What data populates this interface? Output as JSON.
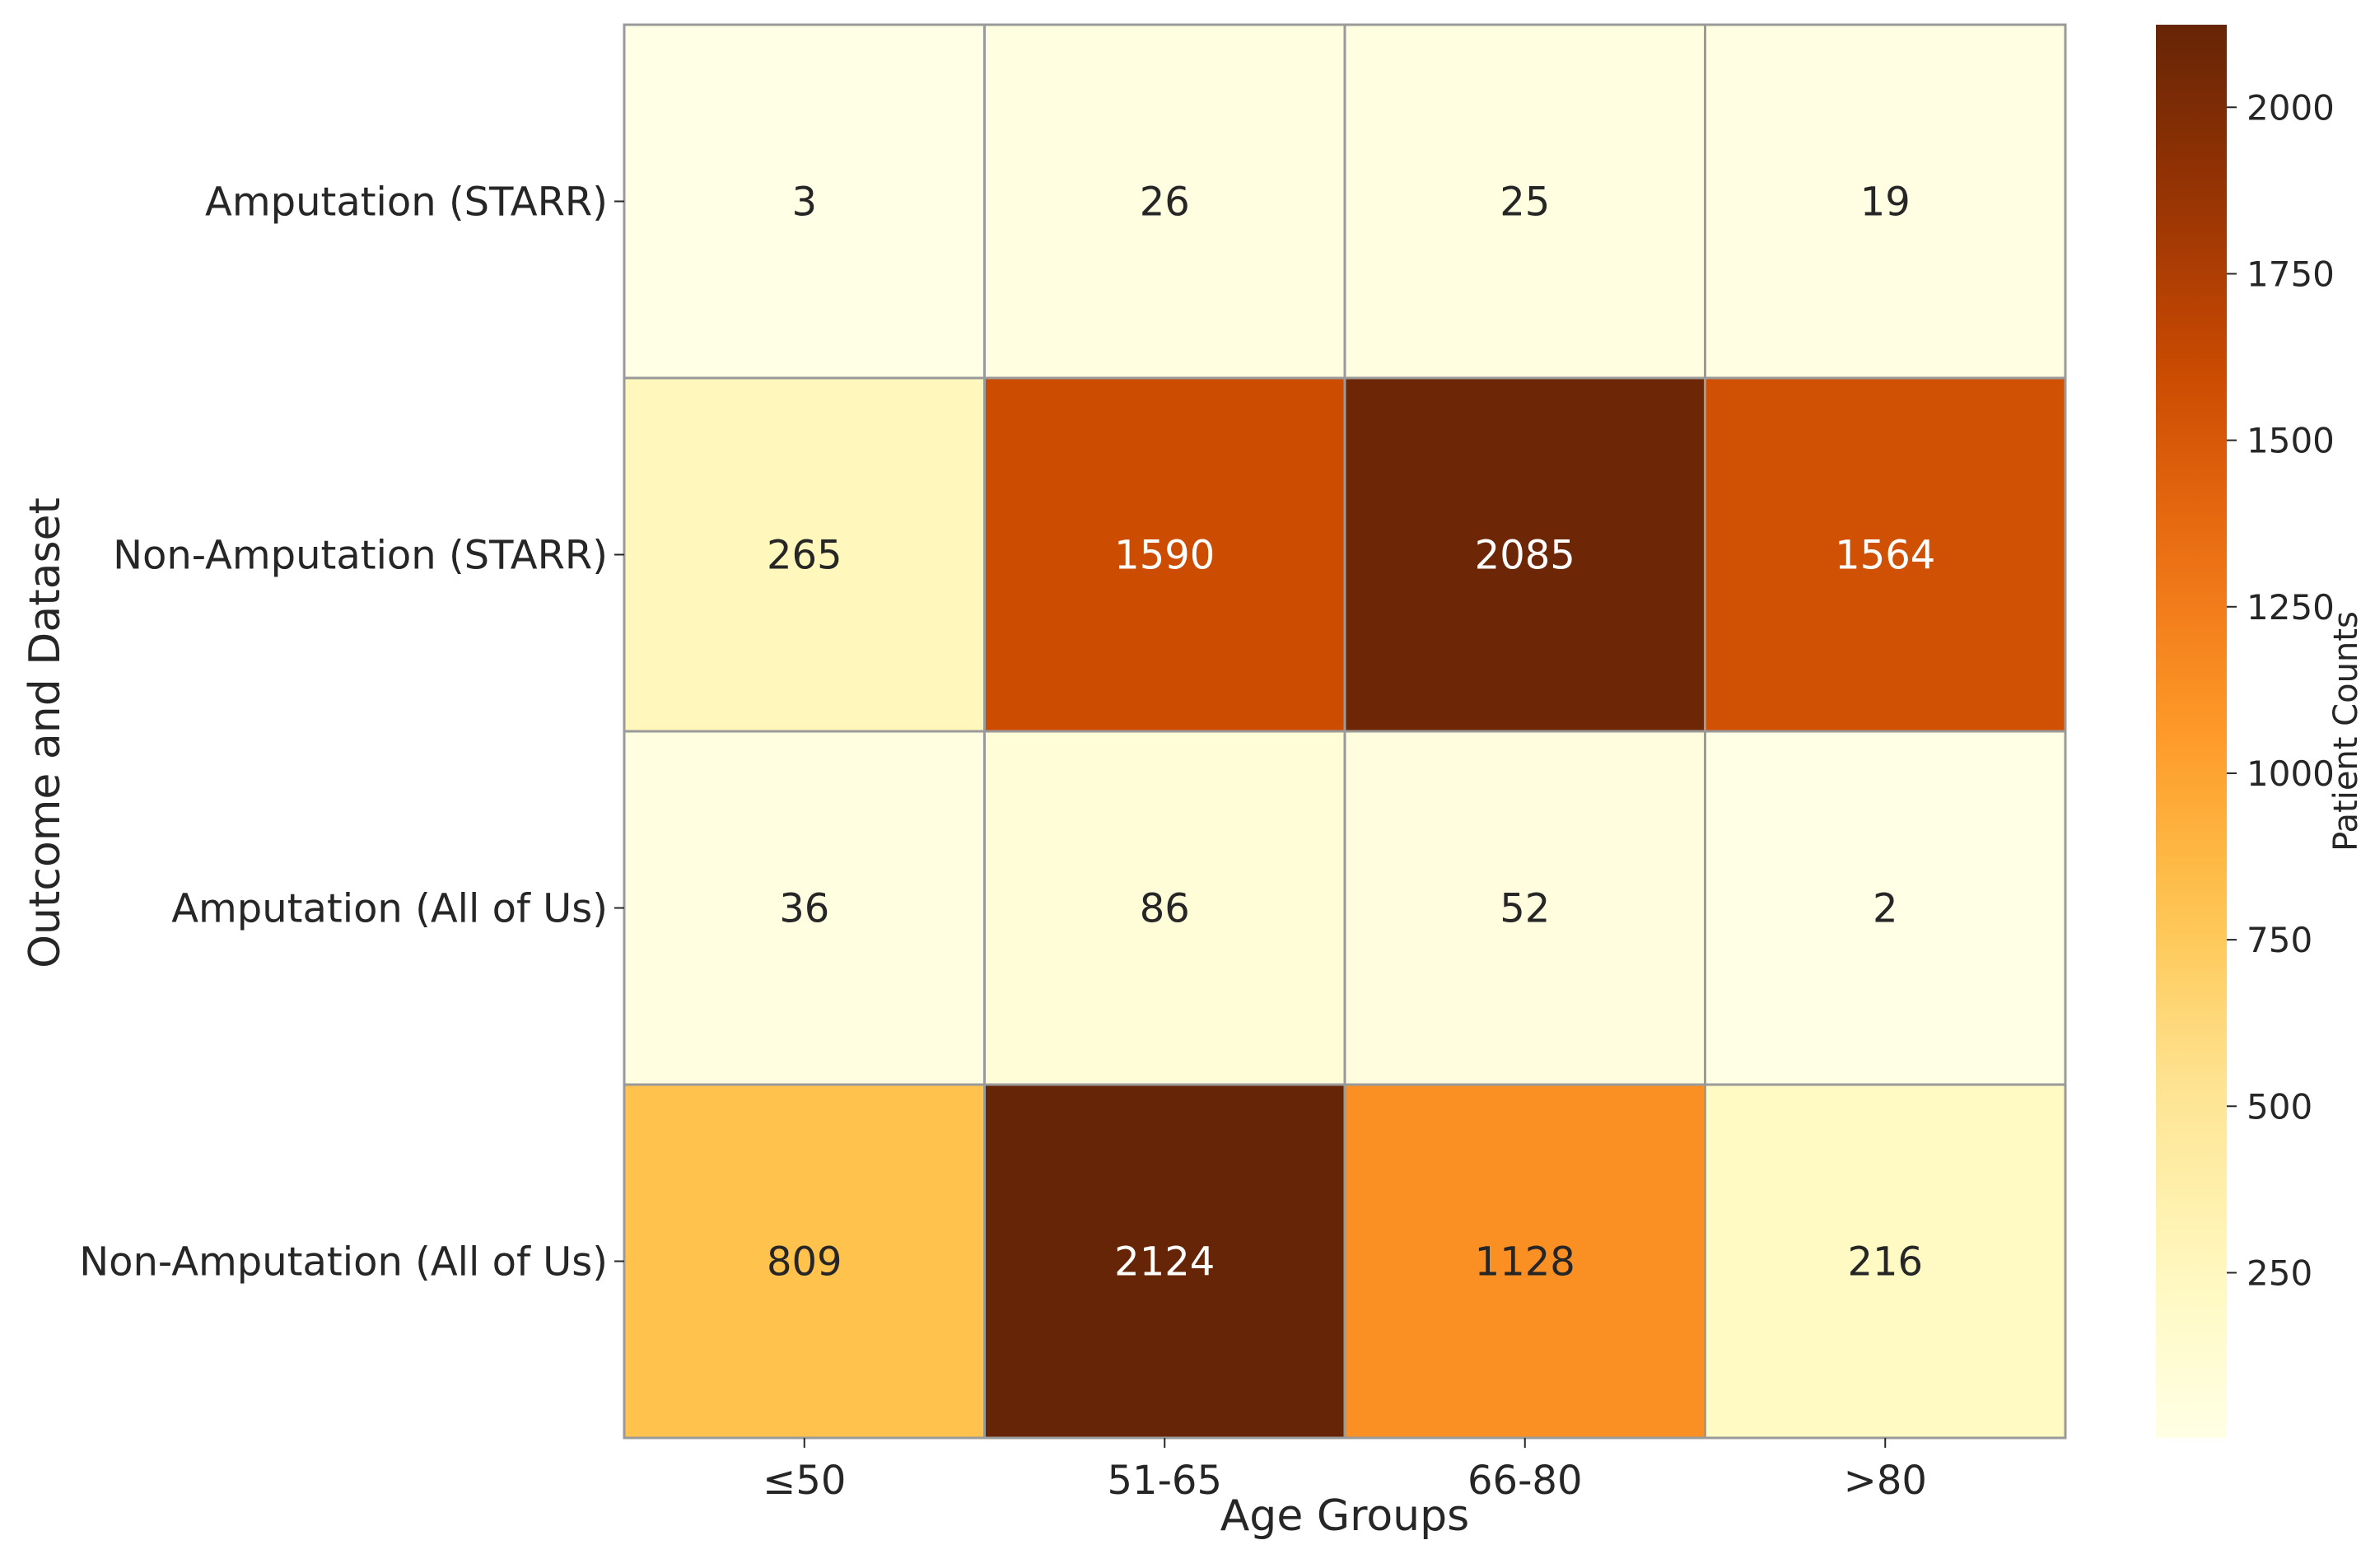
{
  "chart_data": {
    "type": "heatmap",
    "title": "",
    "xlabel": "Age Groups",
    "ylabel": "Outcome and Dataset",
    "x_categories": [
      "≤50",
      "51-65",
      "66-80",
      ">80"
    ],
    "y_categories": [
      "Amputation (STARR)",
      "Non-Amputation (STARR)",
      "Amputation (All of Us)",
      "Non-Amputation (All of Us)"
    ],
    "values": [
      [
        3,
        26,
        25,
        19
      ],
      [
        265,
        1590,
        2085,
        1564
      ],
      [
        36,
        86,
        52,
        2
      ],
      [
        809,
        2124,
        1128,
        216
      ]
    ],
    "colorbar": {
      "label": "Patient Counts",
      "colormap": "YlOrBr",
      "range": [
        2,
        2124
      ],
      "ticks": [
        250,
        500,
        750,
        1000,
        1250,
        1500,
        1750,
        2000
      ],
      "tick_labels": [
        "250",
        "500",
        "750",
        "1000",
        "1250",
        "1500",
        "1750",
        "2000"
      ]
    },
    "colors": {
      "cell_border": "#9a9a9a",
      "text_dark": "#262626",
      "text_light": "#ffffff",
      "axis": "#262626"
    }
  }
}
